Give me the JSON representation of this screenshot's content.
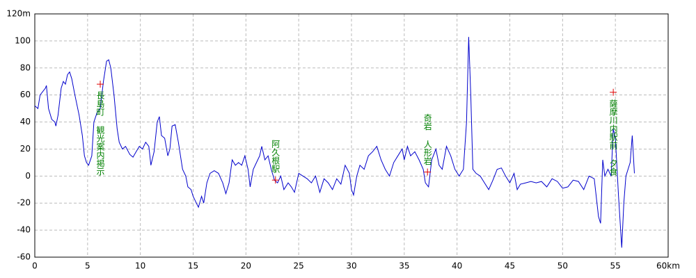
{
  "chart_data": {
    "type": "line",
    "color": "#0000cc",
    "x": [
      0,
      0.3,
      0.5,
      1,
      1.1,
      1.3,
      1.6,
      1.9,
      2,
      2.2,
      2.5,
      2.7,
      2.9,
      3.1,
      3.3,
      3.5,
      3.8,
      4.2,
      4.5,
      4.7,
      4.9,
      5.1,
      5.4,
      5.6,
      5.9,
      6.2,
      6.5,
      6.8,
      7,
      7.2,
      7.5,
      7.8,
      8,
      8.3,
      8.6,
      9,
      9.3,
      9.6,
      9.9,
      10.2,
      10.5,
      10.8,
      11,
      11.3,
      11.6,
      11.8,
      12,
      12.3,
      12.6,
      12.8,
      13,
      13.3,
      13.6,
      13.8,
      14,
      14.3,
      14.5,
      14.8,
      15,
      15.3,
      15.5,
      15.8,
      16,
      16.3,
      16.6,
      17,
      17.4,
      17.8,
      18.1,
      18.4,
      18.7,
      19,
      19.3,
      19.6,
      19.9,
      20.2,
      20.4,
      20.7,
      21,
      21.3,
      21.5,
      21.8,
      22.1,
      22.4,
      22.7,
      23,
      23.3,
      23.6,
      24,
      24.3,
      24.6,
      25,
      25.4,
      25.8,
      26.2,
      26.6,
      27,
      27.4,
      27.8,
      28.2,
      28.6,
      29,
      29.4,
      29.8,
      30,
      30.2,
      30.5,
      30.8,
      31.2,
      31.6,
      32,
      32.4,
      32.8,
      33.2,
      33.6,
      34,
      34.4,
      34.8,
      35,
      35.3,
      35.6,
      36,
      36.4,
      36.8,
      37,
      37.3,
      37.6,
      38,
      38.3,
      38.6,
      39,
      39.4,
      39.8,
      40.2,
      40.6,
      40.9,
      41.1,
      41.3,
      41.5,
      41.8,
      42.2,
      42.6,
      43,
      43.4,
      43.8,
      44.2,
      44.6,
      45,
      45.4,
      45.7,
      46,
      46.5,
      47,
      47.5,
      48,
      48.5,
      49,
      49.5,
      50,
      50.5,
      51,
      51.5,
      52,
      52.5,
      53,
      53.4,
      53.6,
      53.8,
      54,
      54.3,
      54.6,
      54.8,
      55,
      55.3,
      55.6,
      55.8,
      56,
      56.4,
      56.6,
      56.8
    ],
    "values": [
      52,
      50,
      60,
      65,
      67,
      50,
      42,
      40,
      37,
      45,
      65,
      70,
      68,
      75,
      77,
      72,
      60,
      45,
      30,
      15,
      10,
      8,
      15,
      40,
      47,
      50,
      70,
      85,
      86,
      80,
      60,
      35,
      25,
      20,
      22,
      16,
      14,
      18,
      22,
      20,
      25,
      22,
      8,
      18,
      40,
      44,
      30,
      28,
      15,
      20,
      37,
      38,
      25,
      15,
      5,
      0,
      -8,
      -10,
      -15,
      -20,
      -23,
      -15,
      -20,
      -5,
      2,
      4,
      2,
      -5,
      -13,
      -5,
      12,
      8,
      10,
      8,
      15,
      5,
      -8,
      5,
      10,
      15,
      22,
      12,
      15,
      5,
      -3,
      -5,
      0,
      -10,
      -5,
      -8,
      -12,
      2,
      0,
      -2,
      -5,
      0,
      -12,
      -2,
      -5,
      -10,
      -2,
      -6,
      8,
      2,
      -10,
      -14,
      0,
      8,
      5,
      15,
      18,
      22,
      12,
      5,
      0,
      10,
      15,
      20,
      12,
      22,
      15,
      18,
      12,
      5,
      -5,
      -8,
      12,
      20,
      8,
      5,
      22,
      15,
      5,
      0,
      5,
      40,
      103,
      60,
      5,
      2,
      0,
      -5,
      -10,
      -3,
      5,
      6,
      0,
      -5,
      2,
      -10,
      -6,
      -5,
      -4,
      -5,
      -4,
      -8,
      -2,
      -4,
      -9,
      -8,
      -3,
      -4,
      -10,
      0,
      -2,
      -30,
      -35,
      12,
      0,
      5,
      0,
      35,
      28,
      -15,
      -53,
      -20,
      0,
      10,
      30,
      2
    ],
    "xlim": [
      0,
      60
    ],
    "xticks": [
      0,
      5,
      10,
      15,
      20,
      25,
      30,
      35,
      40,
      45,
      50,
      55,
      {
        "value": 60,
        "label": "60km"
      }
    ],
    "ylim": [
      -60,
      120
    ],
    "yticks": [
      -60,
      -40,
      -20,
      0,
      20,
      40,
      60,
      80,
      100,
      {
        "value": 120,
        "label": "120m"
      }
    ],
    "grid": true,
    "annotations": [
      {
        "text": "長島町 観光案内掲示",
        "x": 6.2,
        "y": 68
      },
      {
        "text": "阿久根駅",
        "x": 22.8,
        "y": -3
      },
      {
        "text": "奇岩 人形岩",
        "x": 37.2,
        "y": 3
      },
      {
        "text": "薩摩川内駅前 夕食",
        "x": 54.8,
        "y": 62
      }
    ]
  }
}
